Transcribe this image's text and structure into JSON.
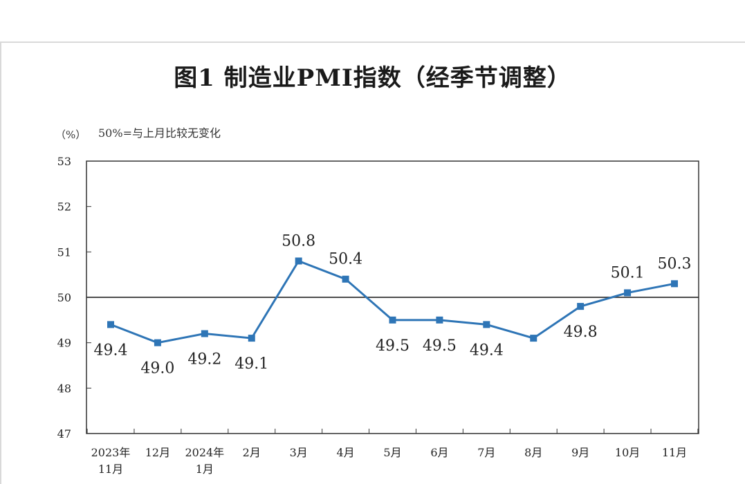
{
  "title": "图1  制造业PMI指数（经季节调整）",
  "chart_data": {
    "type": "line",
    "title": "图1  制造业PMI指数（经季节调整）",
    "unit_label": "（%）",
    "reference_note": "50%=与上月比较无变化",
    "reference_line": 50,
    "categories": [
      [
        "2023年",
        "11月"
      ],
      [
        "12月"
      ],
      [
        "2024年",
        "1月"
      ],
      [
        "2月"
      ],
      [
        "3月"
      ],
      [
        "4月"
      ],
      [
        "5月"
      ],
      [
        "6月"
      ],
      [
        "7月"
      ],
      [
        "8月"
      ],
      [
        "9月"
      ],
      [
        "10月"
      ],
      [
        "11月"
      ]
    ],
    "values": [
      49.4,
      49.0,
      49.2,
      49.1,
      50.8,
      50.4,
      49.5,
      49.5,
      49.4,
      49.1,
      49.8,
      50.1,
      50.3
    ],
    "data_labels": [
      "49.4",
      "49.0",
      "49.2",
      "49.1",
      "50.8",
      "50.4",
      "49.5",
      "49.5",
      "49.4",
      "",
      "49.8",
      "50.1",
      "50.3"
    ],
    "label_positions": [
      "below",
      "below",
      "below",
      "below",
      "above",
      "above",
      "below",
      "below",
      "below",
      "below",
      "below",
      "above",
      "above"
    ],
    "ylim": [
      47,
      53
    ],
    "yticks": [
      "47",
      "48",
      "49",
      "50",
      "51",
      "52",
      "53"
    ],
    "series_color": "#2e75b6",
    "grid": false
  }
}
